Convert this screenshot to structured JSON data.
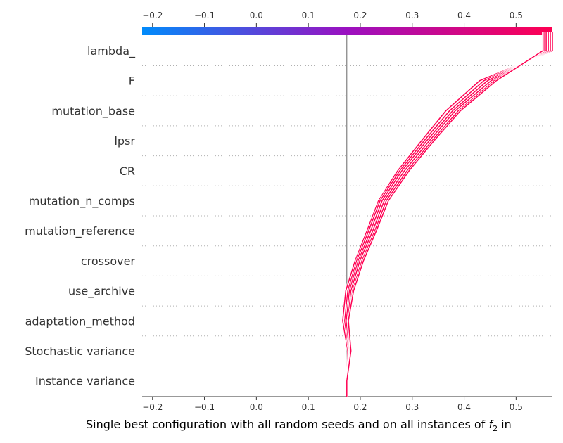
{
  "chart_data": {
    "type": "decision_plot",
    "title": "",
    "xlabel_main": "Single best configuration with all random seeds and on all instances of ",
    "xlabel_math": "f",
    "xlabel_sub": "2",
    "xlabel_tail": " in",
    "xlim": [
      -0.22,
      0.57
    ],
    "ticks": [
      -0.2,
      -0.1,
      0.0,
      0.1,
      0.2,
      0.3,
      0.4,
      0.5
    ],
    "tick_labels": [
      "−0.2",
      "−0.1",
      "0.0",
      "0.1",
      "0.2",
      "0.3",
      "0.4",
      "0.5"
    ],
    "base_value": 0.174,
    "colorbar": {
      "low_color": "#008bfb",
      "mid_color": "#9b10c0",
      "high_color": "#ff0052"
    },
    "line_color": "#ff0052",
    "features": [
      "lambda_",
      "F",
      "mutation_base",
      "lpsr",
      "CR",
      "mutation_n_comps",
      "mutation_reference",
      "crossover",
      "use_archive",
      "adaptation_method",
      "Stochastic variance",
      "Instance variance"
    ],
    "series": [
      {
        "name": "s1",
        "values": [
          0.57,
          0.43,
          0.365,
          0.318,
          0.272,
          0.235,
          0.213,
          0.19,
          0.172,
          0.166,
          0.176,
          0.174
        ]
      },
      {
        "name": "s2",
        "values": [
          0.566,
          0.438,
          0.372,
          0.323,
          0.276,
          0.238,
          0.216,
          0.193,
          0.176,
          0.17,
          0.178,
          0.174
        ]
      },
      {
        "name": "s3",
        "values": [
          0.562,
          0.445,
          0.378,
          0.328,
          0.28,
          0.242,
          0.22,
          0.196,
          0.179,
          0.173,
          0.179,
          0.174
        ]
      },
      {
        "name": "s4",
        "values": [
          0.558,
          0.452,
          0.383,
          0.333,
          0.285,
          0.246,
          0.224,
          0.199,
          0.182,
          0.176,
          0.18,
          0.174
        ]
      },
      {
        "name": "s5",
        "values": [
          0.554,
          0.458,
          0.389,
          0.338,
          0.29,
          0.25,
          0.228,
          0.203,
          0.185,
          0.178,
          0.181,
          0.174
        ]
      },
      {
        "name": "s6",
        "values": [
          0.552,
          0.462,
          0.393,
          0.342,
          0.294,
          0.254,
          0.231,
          0.206,
          0.187,
          0.177,
          0.182,
          0.174
        ]
      }
    ]
  }
}
